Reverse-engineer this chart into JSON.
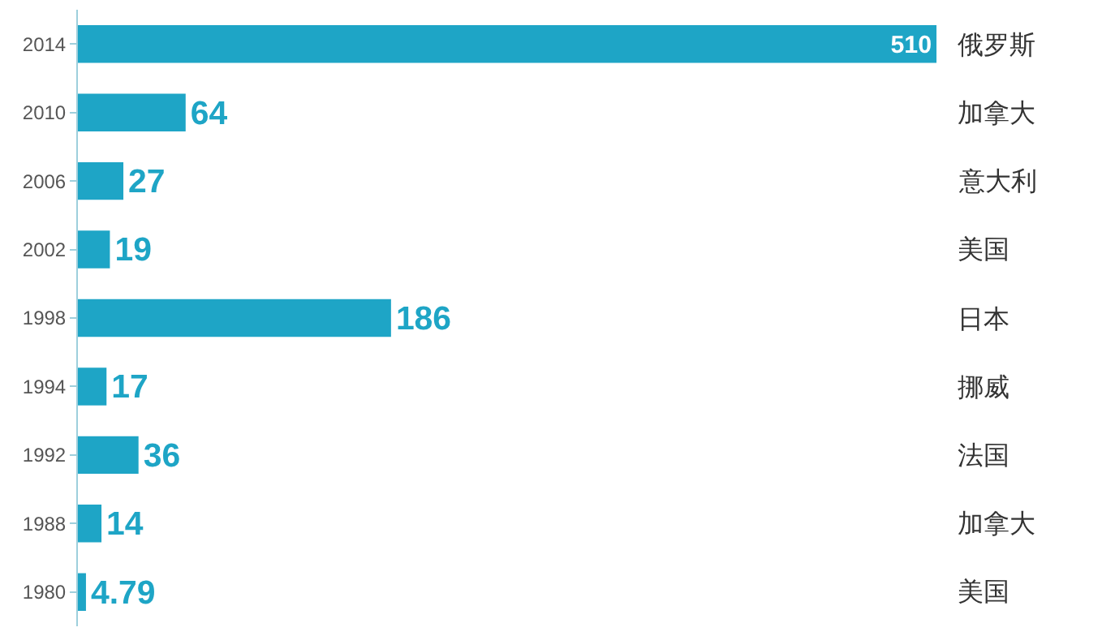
{
  "chart_data": {
    "type": "bar",
    "orientation": "horizontal",
    "categories": [
      "2014",
      "2010",
      "2006",
      "2002",
      "1998",
      "1994",
      "1992",
      "1988",
      "1980"
    ],
    "values": [
      510,
      64,
      27,
      19,
      186,
      17,
      36,
      14,
      4.79
    ],
    "color": "#1ea5c6",
    "data_labels": true,
    "xlim": [
      0,
      510
    ],
    "tick_labels": "y",
    "grid": false,
    "annotations": [
      "俄罗斯",
      "加拿大",
      "意大利",
      "美国",
      "日本",
      "挪威",
      "法国",
      "加拿大",
      "美国"
    ]
  }
}
